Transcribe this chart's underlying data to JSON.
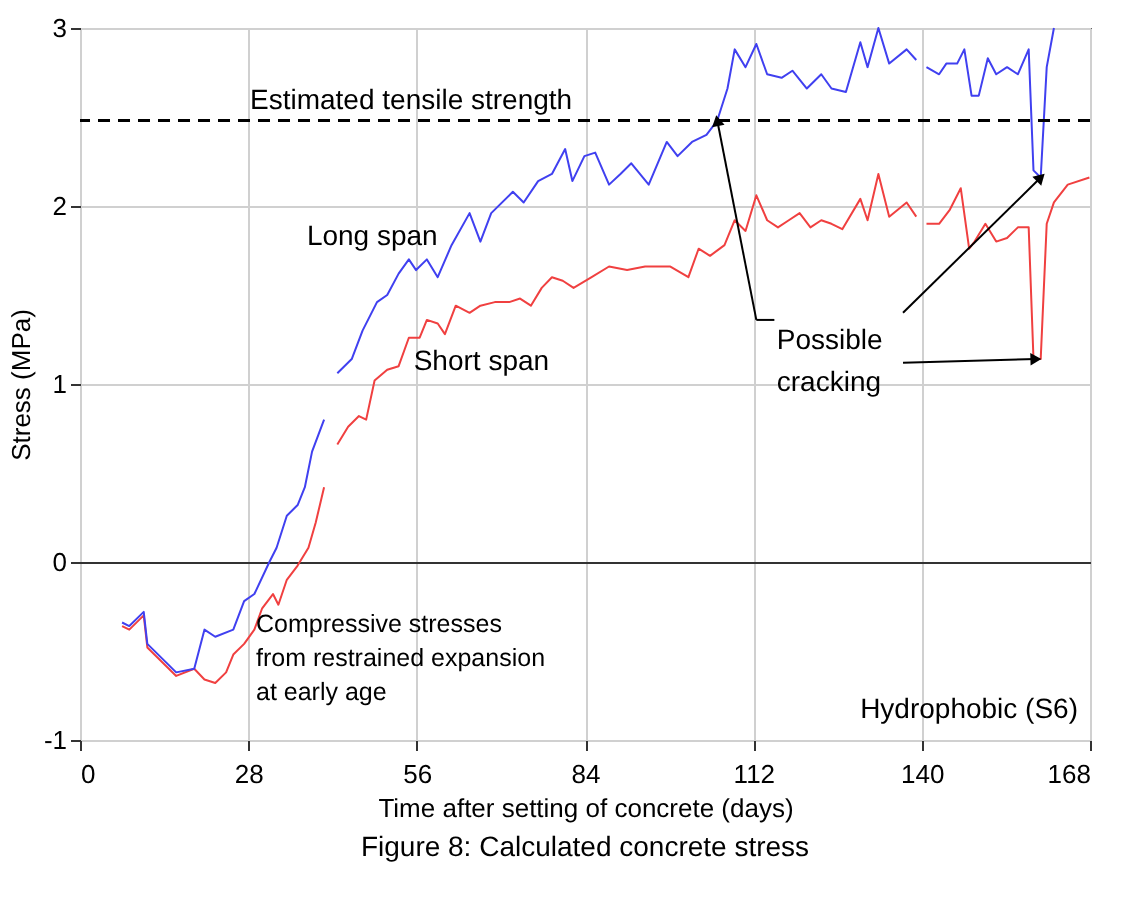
{
  "chart_data": {
    "type": "line",
    "xlabel": "Time after setting of concrete (days)",
    "ylabel": "Stress (MPa)",
    "xlim": [
      0,
      168
    ],
    "xticks": [
      0,
      28,
      56,
      84,
      112,
      140,
      168
    ],
    "ylim": [
      -1,
      3
    ],
    "yticks": [
      -1,
      0,
      1,
      2,
      3
    ],
    "grid": true,
    "series": [
      {
        "name": "Long span",
        "color": "#4040f0",
        "x": [
          7,
          8.2,
          10.6,
          11.2,
          16,
          19,
          20.7,
          22.5,
          25.5,
          27.3,
          29,
          31.5,
          32.7,
          34.4,
          36.2,
          37.4,
          38.6,
          40.6,
          41.7,
          42.8,
          45.2,
          47,
          49.4,
          51.1,
          53,
          54.7,
          55.9,
          57.7,
          59.5,
          61.8,
          64.8,
          66.6,
          68.4,
          72,
          73.8,
          76.2,
          78.5,
          80.7,
          81.9,
          83.9,
          85.7,
          88,
          89.9,
          91.7,
          94.6,
          97.6,
          99.4,
          101.8,
          104.2,
          106,
          107.7,
          108.9,
          110.7,
          112.5,
          114.3,
          116.7,
          118.5,
          120.9,
          123.3,
          125,
          127.4,
          129.8,
          131,
          132.8,
          134.6,
          137.5,
          139.1,
          140,
          140.8,
          142.9,
          144.1,
          145.9,
          147.1,
          148.3,
          149.5,
          151,
          152.4,
          154.2,
          156,
          157.8,
          158.6,
          159.8,
          160.8,
          162
        ],
        "values": [
          -0.34,
          -0.36,
          -0.28,
          -0.46,
          -0.62,
          -0.6,
          -0.38,
          -0.42,
          -0.38,
          -0.22,
          -0.18,
          0,
          0.08,
          0.26,
          0.32,
          0.42,
          0.62,
          0.8,
          null,
          1.06,
          1.14,
          1.3,
          1.46,
          1.5,
          1.62,
          1.7,
          1.64,
          1.7,
          1.6,
          1.78,
          1.96,
          1.8,
          1.96,
          2.08,
          2.02,
          2.14,
          2.18,
          2.32,
          2.14,
          2.28,
          2.3,
          2.12,
          2.18,
          2.24,
          2.12,
          2.36,
          2.28,
          2.36,
          2.4,
          2.48,
          2.66,
          2.88,
          2.78,
          2.91,
          2.74,
          2.72,
          2.76,
          2.66,
          2.74,
          2.66,
          2.64,
          2.92,
          2.78,
          3.0,
          2.8,
          2.88,
          2.82,
          null,
          2.78,
          2.74,
          2.8,
          2.8,
          2.88,
          2.62,
          2.62,
          2.83,
          2.74,
          2.78,
          2.74,
          2.88,
          2.2,
          2.16,
          2.78,
          3.0
        ]
      },
      {
        "name": "Short span",
        "color": "#f04040",
        "x": [
          7,
          8.2,
          10.6,
          11.2,
          16,
          19,
          20.7,
          22.5,
          24.3,
          25.5,
          27.3,
          29,
          30.3,
          32.1,
          33,
          34.4,
          36.2,
          38,
          39.2,
          40.6,
          41.7,
          42.8,
          44.6,
          46.4,
          47.6,
          49,
          51.1,
          53,
          54.7,
          56.5,
          57.7,
          59.5,
          60.7,
          62.5,
          64.8,
          66.6,
          69,
          71.4,
          73.2,
          75,
          76.8,
          78.5,
          80.3,
          82.1,
          85.1,
          88,
          91,
          94,
          98.2,
          101.2,
          102.9,
          104.8,
          107.2,
          108.9,
          110.7,
          112.5,
          114.3,
          116.1,
          117.9,
          119.7,
          121.5,
          123.3,
          125,
          126.8,
          129.8,
          131,
          132.8,
          134.6,
          137.5,
          139.1,
          140,
          140.8,
          142.9,
          144.7,
          146.5,
          147.9,
          148.8,
          150.6,
          152.4,
          154.2,
          156,
          157.8,
          158.6,
          159.8,
          160.8,
          162,
          164.3,
          167.9
        ],
        "values": [
          -0.36,
          -0.38,
          -0.3,
          -0.48,
          -0.64,
          -0.6,
          -0.66,
          -0.68,
          -0.62,
          -0.52,
          -0.46,
          -0.38,
          -0.26,
          -0.18,
          -0.24,
          -0.1,
          -0.02,
          0.08,
          0.22,
          0.42,
          null,
          0.66,
          0.76,
          0.82,
          0.8,
          1.02,
          1.08,
          1.1,
          1.26,
          1.26,
          1.36,
          1.34,
          1.28,
          1.44,
          1.4,
          1.44,
          1.46,
          1.46,
          1.48,
          1.44,
          1.54,
          1.6,
          1.58,
          1.54,
          1.6,
          1.66,
          1.64,
          1.66,
          1.66,
          1.6,
          1.76,
          1.72,
          1.78,
          1.92,
          1.86,
          2.06,
          1.92,
          1.88,
          1.92,
          1.96,
          1.88,
          1.92,
          1.9,
          1.87,
          2.04,
          1.92,
          2.18,
          1.94,
          2.02,
          1.94,
          null,
          1.9,
          1.9,
          1.98,
          2.1,
          1.76,
          1.8,
          1.9,
          1.8,
          1.82,
          1.88,
          1.88,
          1.14,
          1.14,
          1.9,
          2.02,
          2.12,
          2.16
        ]
      }
    ],
    "ref_lines": [
      {
        "axis": "y",
        "value": 2.48,
        "label": "Estimated tensile strength",
        "color": "#000000",
        "line_style": "dashed"
      }
    ],
    "annotations": [
      "Compressive stresses\nfrom restrained expansion\nat early age",
      "Hydrophobic (S6)",
      {
        "text": "Possible\ncracking",
        "x": 106,
        "y": 2.48
      },
      "Figure 8: Calculated concrete stress"
    ]
  }
}
